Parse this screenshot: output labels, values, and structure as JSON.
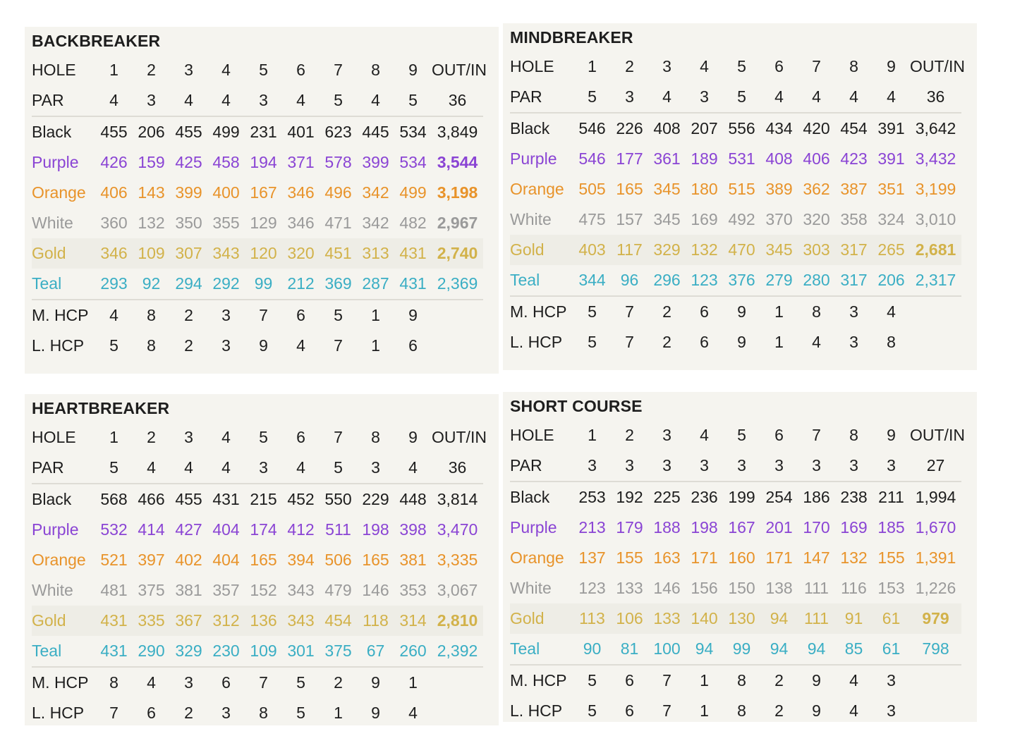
{
  "colors": {
    "Black": "#1e1e1e",
    "Purple": "#8a44d4",
    "Orange": "#e8932a",
    "White": "#9a9a9a",
    "Gold": "#d2b24a",
    "Teal": "#3aaec4",
    "text": "#1e1e1e"
  },
  "courses": [
    {
      "title": "BACKBREAKER",
      "hole_label": "HOLE",
      "holes": [
        "1",
        "2",
        "3",
        "4",
        "5",
        "6",
        "7",
        "8",
        "9"
      ],
      "total_label": "OUT/IN",
      "par_label": "PAR",
      "par": [
        "4",
        "3",
        "4",
        "4",
        "3",
        "4",
        "5",
        "4",
        "5"
      ],
      "par_total": "36",
      "tees": [
        {
          "name": "Black",
          "yards": [
            "455",
            "206",
            "455",
            "499",
            "231",
            "401",
            "623",
            "445",
            "534"
          ],
          "total": "3,849",
          "total_bold": false
        },
        {
          "name": "Purple",
          "yards": [
            "426",
            "159",
            "425",
            "458",
            "194",
            "371",
            "578",
            "399",
            "534"
          ],
          "total": "3,544",
          "total_bold": true
        },
        {
          "name": "Orange",
          "yards": [
            "406",
            "143",
            "399",
            "400",
            "167",
            "346",
            "496",
            "342",
            "499"
          ],
          "total": "3,198",
          "total_bold": true
        },
        {
          "name": "White",
          "yards": [
            "360",
            "132",
            "350",
            "355",
            "129",
            "346",
            "471",
            "342",
            "482"
          ],
          "total": "2,967",
          "total_bold": true
        },
        {
          "name": "Gold",
          "yards": [
            "346",
            "109",
            "307",
            "343",
            "120",
            "320",
            "451",
            "313",
            "431"
          ],
          "total": "2,740",
          "total_bold": true
        },
        {
          "name": "Teal",
          "yards": [
            "293",
            "92",
            "294",
            "292",
            "99",
            "212",
            "369",
            "287",
            "431"
          ],
          "total": "2,369",
          "total_bold": false
        }
      ],
      "mhcp_label": "M. HCP",
      "mhcp": [
        "4",
        "8",
        "2",
        "3",
        "7",
        "6",
        "5",
        "1",
        "9"
      ],
      "lhcp_label": "L. HCP",
      "lhcp": [
        "5",
        "8",
        "2",
        "3",
        "9",
        "4",
        "7",
        "1",
        "6"
      ]
    },
    {
      "title": "MINDBREAKER",
      "hole_label": "HOLE",
      "holes": [
        "1",
        "2",
        "3",
        "4",
        "5",
        "6",
        "7",
        "8",
        "9"
      ],
      "total_label": "OUT/IN",
      "par_label": "PAR",
      "par": [
        "5",
        "3",
        "4",
        "3",
        "5",
        "4",
        "4",
        "4",
        "4"
      ],
      "par_total": "36",
      "tees": [
        {
          "name": "Black",
          "yards": [
            "546",
            "226",
            "408",
            "207",
            "556",
            "434",
            "420",
            "454",
            "391"
          ],
          "total": "3,642",
          "total_bold": false
        },
        {
          "name": "Purple",
          "yards": [
            "546",
            "177",
            "361",
            "189",
            "531",
            "408",
            "406",
            "423",
            "391"
          ],
          "total": "3,432",
          "total_bold": false
        },
        {
          "name": "Orange",
          "yards": [
            "505",
            "165",
            "345",
            "180",
            "515",
            "389",
            "362",
            "387",
            "351"
          ],
          "total": "3,199",
          "total_bold": false
        },
        {
          "name": "White",
          "yards": [
            "475",
            "157",
            "345",
            "169",
            "492",
            "370",
            "320",
            "358",
            "324"
          ],
          "total": "3,010",
          "total_bold": false
        },
        {
          "name": "Gold",
          "yards": [
            "403",
            "117",
            "329",
            "132",
            "470",
            "345",
            "303",
            "317",
            "265"
          ],
          "total": "2,681",
          "total_bold": true
        },
        {
          "name": "Teal",
          "yards": [
            "344",
            "96",
            "296",
            "123",
            "376",
            "279",
            "280",
            "317",
            "206"
          ],
          "total": "2,317",
          "total_bold": false
        }
      ],
      "mhcp_label": "M. HCP",
      "mhcp": [
        "5",
        "7",
        "2",
        "6",
        "9",
        "1",
        "8",
        "3",
        "4"
      ],
      "lhcp_label": "L. HCP",
      "lhcp": [
        "5",
        "7",
        "2",
        "6",
        "9",
        "1",
        "4",
        "3",
        "8"
      ]
    },
    {
      "title": "HEARTBREAKER",
      "hole_label": "HOLE",
      "holes": [
        "1",
        "2",
        "3",
        "4",
        "5",
        "6",
        "7",
        "8",
        "9"
      ],
      "total_label": "OUT/IN",
      "par_label": "PAR",
      "par": [
        "5",
        "4",
        "4",
        "4",
        "3",
        "4",
        "5",
        "3",
        "4"
      ],
      "par_total": "36",
      "tees": [
        {
          "name": "Black",
          "yards": [
            "568",
            "466",
            "455",
            "431",
            "215",
            "452",
            "550",
            "229",
            "448"
          ],
          "total": "3,814",
          "total_bold": false
        },
        {
          "name": "Purple",
          "yards": [
            "532",
            "414",
            "427",
            "404",
            "174",
            "412",
            "511",
            "198",
            "398"
          ],
          "total": "3,470",
          "total_bold": false
        },
        {
          "name": "Orange",
          "yards": [
            "521",
            "397",
            "402",
            "404",
            "165",
            "394",
            "506",
            "165",
            "381"
          ],
          "total": "3,335",
          "total_bold": false
        },
        {
          "name": "White",
          "yards": [
            "481",
            "375",
            "381",
            "357",
            "152",
            "343",
            "479",
            "146",
            "353"
          ],
          "total": "3,067",
          "total_bold": false
        },
        {
          "name": "Gold",
          "yards": [
            "431",
            "335",
            "367",
            "312",
            "136",
            "343",
            "454",
            "118",
            "314"
          ],
          "total": "2,810",
          "total_bold": true
        },
        {
          "name": "Teal",
          "yards": [
            "431",
            "290",
            "329",
            "230",
            "109",
            "301",
            "375",
            "67",
            "260"
          ],
          "total": "2,392",
          "total_bold": false
        }
      ],
      "mhcp_label": "M. HCP",
      "mhcp": [
        "8",
        "4",
        "3",
        "6",
        "7",
        "5",
        "2",
        "9",
        "1"
      ],
      "lhcp_label": "L. HCP",
      "lhcp": [
        "7",
        "6",
        "2",
        "3",
        "8",
        "5",
        "1",
        "9",
        "4"
      ]
    },
    {
      "title": "SHORT COURSE",
      "hole_label": "HOLE",
      "holes": [
        "1",
        "2",
        "3",
        "4",
        "5",
        "6",
        "7",
        "8",
        "9"
      ],
      "total_label": "OUT/IN",
      "par_label": "PAR",
      "par": [
        "3",
        "3",
        "3",
        "3",
        "3",
        "3",
        "3",
        "3",
        "3"
      ],
      "par_total": "27",
      "tees": [
        {
          "name": "Black",
          "yards": [
            "253",
            "192",
            "225",
            "236",
            "199",
            "254",
            "186",
            "238",
            "211"
          ],
          "total": "1,994",
          "total_bold": false
        },
        {
          "name": "Purple",
          "yards": [
            "213",
            "179",
            "188",
            "198",
            "167",
            "201",
            "170",
            "169",
            "185"
          ],
          "total": "1,670",
          "total_bold": false
        },
        {
          "name": "Orange",
          "yards": [
            "137",
            "155",
            "163",
            "171",
            "160",
            "171",
            "147",
            "132",
            "155"
          ],
          "total": "1,391",
          "total_bold": false
        },
        {
          "name": "White",
          "yards": [
            "123",
            "133",
            "146",
            "156",
            "150",
            "138",
            "111",
            "116",
            "153"
          ],
          "total": "1,226",
          "total_bold": false
        },
        {
          "name": "Gold",
          "yards": [
            "113",
            "106",
            "133",
            "140",
            "130",
            "94",
            "111",
            "91",
            "61"
          ],
          "total": "979",
          "total_bold": true
        },
        {
          "name": "Teal",
          "yards": [
            "90",
            "81",
            "100",
            "94",
            "99",
            "94",
            "94",
            "85",
            "61"
          ],
          "total": "798",
          "total_bold": false
        }
      ],
      "mhcp_label": "M. HCP",
      "mhcp": [
        "5",
        "6",
        "7",
        "1",
        "8",
        "2",
        "9",
        "4",
        "3"
      ],
      "lhcp_label": "L. HCP",
      "lhcp": [
        "5",
        "6",
        "7",
        "1",
        "8",
        "2",
        "9",
        "4",
        "3"
      ]
    }
  ]
}
